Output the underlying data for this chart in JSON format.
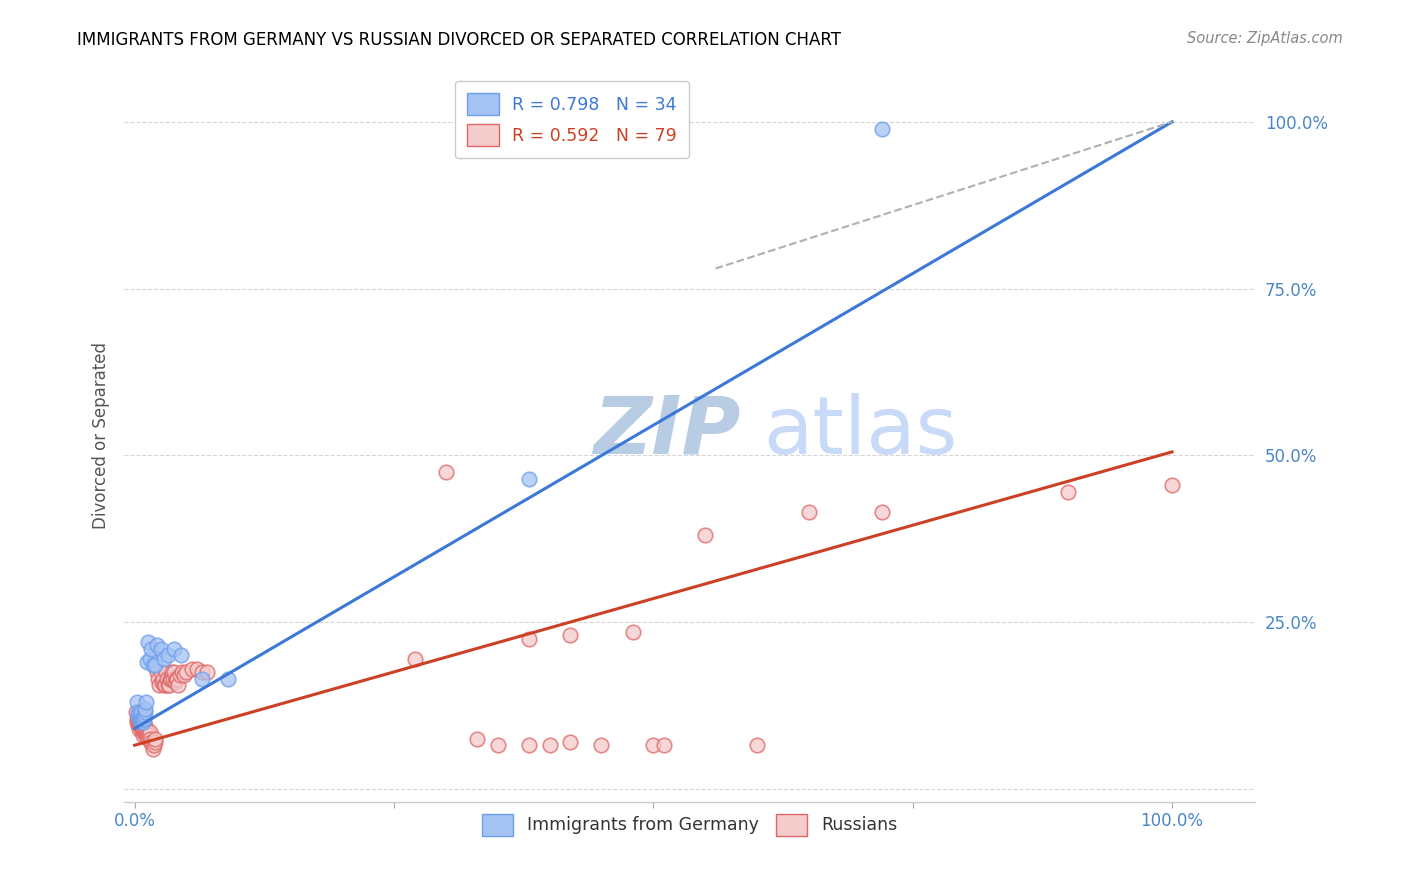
{
  "title": "IMMIGRANTS FROM GERMANY VS RUSSIAN DIVORCED OR SEPARATED CORRELATION CHART",
  "source": "Source: ZipAtlas.com",
  "ylabel": "Divorced or Separated",
  "legend_labels": [
    "Immigrants from Germany",
    "Russians"
  ],
  "blue_color": "#a4c2f4",
  "pink_color": "#f4cccc",
  "blue_edge_color": "#6d9eeb",
  "pink_edge_color": "#e06666",
  "blue_line_color": "#3c78d8",
  "pink_line_color": "#cc4125",
  "title_color": "#000000",
  "axis_tick_color": "#4a86c8",
  "watermark_zip_color": "#b8cce4",
  "watermark_atlas_color": "#c9daf8",
  "background_color": "#ffffff",
  "grid_color": "#cccccc",
  "blue_scatter": [
    [
      0.002,
      0.13
    ],
    [
      0.003,
      0.115
    ],
    [
      0.003,
      0.11
    ],
    [
      0.004,
      0.105
    ],
    [
      0.005,
      0.105
    ],
    [
      0.005,
      0.108
    ],
    [
      0.006,
      0.11
    ],
    [
      0.006,
      0.115
    ],
    [
      0.007,
      0.1
    ],
    [
      0.007,
      0.105
    ],
    [
      0.008,
      0.1
    ],
    [
      0.008,
      0.105
    ],
    [
      0.009,
      0.105
    ],
    [
      0.009,
      0.11
    ],
    [
      0.01,
      0.115
    ],
    [
      0.01,
      0.12
    ],
    [
      0.011,
      0.13
    ],
    [
      0.012,
      0.19
    ],
    [
      0.013,
      0.22
    ],
    [
      0.015,
      0.195
    ],
    [
      0.016,
      0.21
    ],
    [
      0.018,
      0.185
    ],
    [
      0.02,
      0.185
    ],
    [
      0.022,
      0.215
    ],
    [
      0.025,
      0.21
    ],
    [
      0.028,
      0.195
    ],
    [
      0.032,
      0.2
    ],
    [
      0.038,
      0.21
    ],
    [
      0.045,
      0.2
    ],
    [
      0.065,
      0.165
    ],
    [
      0.09,
      0.165
    ],
    [
      0.38,
      0.465
    ],
    [
      0.43,
      0.99
    ],
    [
      0.72,
      0.99
    ]
  ],
  "pink_scatter": [
    [
      0.001,
      0.115
    ],
    [
      0.002,
      0.105
    ],
    [
      0.002,
      0.1
    ],
    [
      0.003,
      0.105
    ],
    [
      0.003,
      0.095
    ],
    [
      0.004,
      0.09
    ],
    [
      0.004,
      0.1
    ],
    [
      0.005,
      0.095
    ],
    [
      0.005,
      0.1
    ],
    [
      0.006,
      0.1
    ],
    [
      0.006,
      0.095
    ],
    [
      0.007,
      0.09
    ],
    [
      0.007,
      0.085
    ],
    [
      0.008,
      0.08
    ],
    [
      0.008,
      0.09
    ],
    [
      0.009,
      0.085
    ],
    [
      0.009,
      0.09
    ],
    [
      0.01,
      0.095
    ],
    [
      0.01,
      0.085
    ],
    [
      0.011,
      0.08
    ],
    [
      0.011,
      0.09
    ],
    [
      0.012,
      0.085
    ],
    [
      0.012,
      0.08
    ],
    [
      0.013,
      0.075
    ],
    [
      0.013,
      0.085
    ],
    [
      0.014,
      0.08
    ],
    [
      0.015,
      0.085
    ],
    [
      0.015,
      0.075
    ],
    [
      0.016,
      0.07
    ],
    [
      0.017,
      0.065
    ],
    [
      0.018,
      0.06
    ],
    [
      0.019,
      0.065
    ],
    [
      0.02,
      0.07
    ],
    [
      0.02,
      0.075
    ],
    [
      0.022,
      0.175
    ],
    [
      0.023,
      0.165
    ],
    [
      0.024,
      0.155
    ],
    [
      0.025,
      0.175
    ],
    [
      0.026,
      0.16
    ],
    [
      0.027,
      0.165
    ],
    [
      0.028,
      0.155
    ],
    [
      0.029,
      0.155
    ],
    [
      0.03,
      0.175
    ],
    [
      0.031,
      0.165
    ],
    [
      0.032,
      0.155
    ],
    [
      0.033,
      0.155
    ],
    [
      0.034,
      0.165
    ],
    [
      0.035,
      0.165
    ],
    [
      0.036,
      0.175
    ],
    [
      0.037,
      0.165
    ],
    [
      0.038,
      0.175
    ],
    [
      0.039,
      0.16
    ],
    [
      0.04,
      0.165
    ],
    [
      0.041,
      0.165
    ],
    [
      0.042,
      0.155
    ],
    [
      0.044,
      0.17
    ],
    [
      0.046,
      0.175
    ],
    [
      0.048,
      0.17
    ],
    [
      0.05,
      0.175
    ],
    [
      0.055,
      0.18
    ],
    [
      0.06,
      0.18
    ],
    [
      0.065,
      0.175
    ],
    [
      0.07,
      0.175
    ],
    [
      0.27,
      0.195
    ],
    [
      0.3,
      0.475
    ],
    [
      0.33,
      0.075
    ],
    [
      0.35,
      0.065
    ],
    [
      0.38,
      0.065
    ],
    [
      0.4,
      0.065
    ],
    [
      0.42,
      0.07
    ],
    [
      0.45,
      0.065
    ],
    [
      0.5,
      0.065
    ],
    [
      0.51,
      0.065
    ],
    [
      0.6,
      0.065
    ],
    [
      0.38,
      0.225
    ],
    [
      0.42,
      0.23
    ],
    [
      0.48,
      0.235
    ],
    [
      0.55,
      0.38
    ],
    [
      0.65,
      0.415
    ],
    [
      0.72,
      0.415
    ],
    [
      0.9,
      0.445
    ],
    [
      1.0,
      0.455
    ]
  ],
  "blue_line_pts": [
    [
      0.0,
      0.09
    ],
    [
      1.0,
      1.0
    ]
  ],
  "pink_line_pts": [
    [
      0.0,
      0.065
    ],
    [
      1.0,
      0.505
    ]
  ],
  "dashed_line_pts": [
    [
      0.56,
      0.78
    ],
    [
      1.0,
      1.0
    ]
  ],
  "ylim": [
    -0.02,
    1.08
  ],
  "xlim": [
    -0.01,
    1.08
  ]
}
